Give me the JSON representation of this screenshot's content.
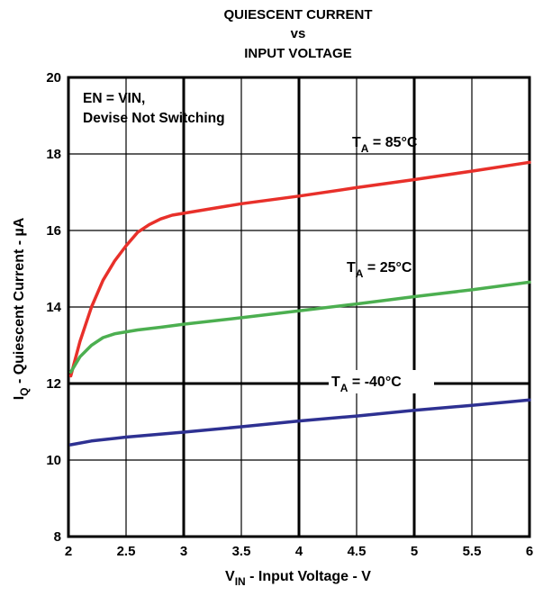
{
  "chart_data": {
    "type": "line",
    "title": [
      "QUIESCENT CURRENT",
      "vs",
      "INPUT VOLTAGE"
    ],
    "xlabel": {
      "main": "V",
      "sub": "IN",
      "rest": " - Input Voltage - V"
    },
    "ylabel": {
      "main": "I",
      "sub": "Q",
      "rest": " - Quiescent Current - µA"
    },
    "xlim": [
      2,
      6
    ],
    "ylim": [
      8,
      20
    ],
    "x_ticks": [
      "2",
      "2.5",
      "3",
      "3.5",
      "4",
      "4.5",
      "5",
      "5.5",
      "6"
    ],
    "y_ticks": [
      "8",
      "10",
      "12",
      "14",
      "16",
      "18",
      "20"
    ],
    "grid": true,
    "annotation": [
      "EN = VIN,",
      "Devise Not Switching"
    ],
    "series": [
      {
        "name": "85°C",
        "label": {
          "pre": "T",
          "sub": "A",
          "post": " = 85°C"
        },
        "color": "#e8302a",
        "x": [
          2.02,
          2.1,
          2.2,
          2.3,
          2.4,
          2.5,
          2.6,
          2.7,
          2.8,
          2.9,
          3.0,
          3.2,
          3.5,
          4.0,
          4.5,
          5.0,
          5.5,
          6.0
        ],
        "y": [
          12.2,
          13.1,
          14.0,
          14.7,
          15.2,
          15.6,
          15.95,
          16.15,
          16.3,
          16.4,
          16.45,
          16.55,
          16.7,
          16.9,
          17.12,
          17.33,
          17.55,
          17.78
        ]
      },
      {
        "name": "25°C",
        "label": {
          "pre": "T",
          "sub": "A",
          "post": " = 25°C"
        },
        "color": "#4caf50",
        "x": [
          2.02,
          2.1,
          2.2,
          2.3,
          2.4,
          2.5,
          2.6,
          2.8,
          3.0,
          3.5,
          4.0,
          4.5,
          5.0,
          5.5,
          6.0
        ],
        "y": [
          12.3,
          12.7,
          13.0,
          13.2,
          13.3,
          13.35,
          13.4,
          13.47,
          13.55,
          13.72,
          13.9,
          14.08,
          14.27,
          14.45,
          14.65
        ]
      },
      {
        "name": "-40°C",
        "label": {
          "pre": "T",
          "sub": "A",
          "post": " = -40°C"
        },
        "color": "#2e3192",
        "x": [
          2.02,
          2.2,
          2.5,
          3.0,
          3.5,
          4.0,
          4.5,
          5.0,
          5.5,
          6.0
        ],
        "y": [
          10.4,
          10.5,
          10.6,
          10.73,
          10.87,
          11.02,
          11.15,
          11.3,
          11.43,
          11.57
        ]
      }
    ]
  }
}
